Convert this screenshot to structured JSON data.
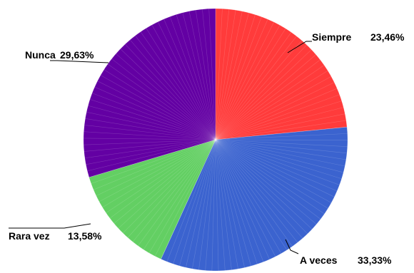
{
  "chart_data": {
    "type": "pie",
    "title": "",
    "slices": [
      {
        "label": "Siempre",
        "value": 23.46,
        "value_label": "23,46%",
        "color": "#ff3b3b"
      },
      {
        "label": "A veces",
        "value": 33.33,
        "value_label": "33,33%",
        "color": "#3b63cf"
      },
      {
        "label": "Rara vez",
        "value": 13.58,
        "value_label": "13,58%",
        "color": "#63cf63"
      },
      {
        "label": "Nunca",
        "value": 29.63,
        "value_label": "29,63%",
        "color": "#6300a3"
      }
    ],
    "start_position": "12 o'clock",
    "direction": "clockwise",
    "legend": "none",
    "labels": "outside with leader lines"
  }
}
